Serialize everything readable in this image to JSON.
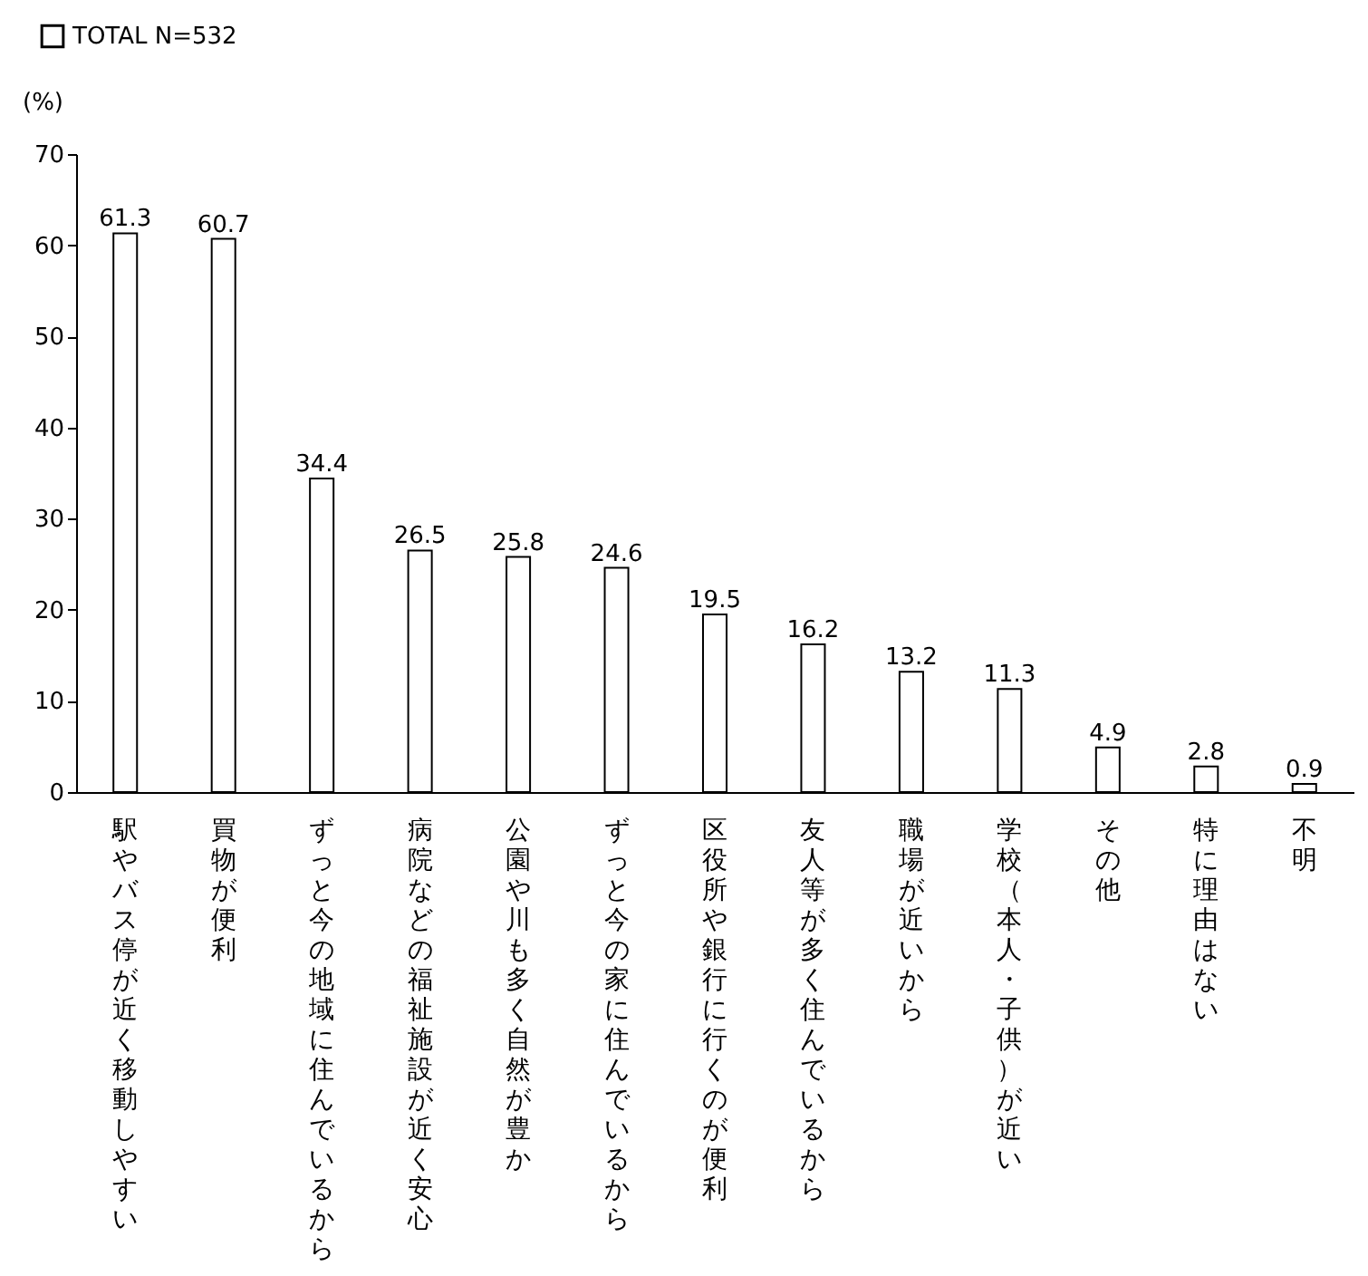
{
  "chart_data": {
    "type": "bar",
    "ylabel": "(%)",
    "categories": [
      "駅やバス停が近く移動しやすい",
      "買物が便利",
      "ずっと今の地域に住んでいるから",
      "病院などの福祉施設が近く安心",
      "公園や川も多く自然が豊か",
      "ずっと今の家に住んでいるから",
      "区役所や銀行に行くのが便利",
      "友人等が多く住んでいるから",
      "職場が近いから",
      "学校（本人・子供）が近い",
      "その他",
      "特に理由はない",
      "不明"
    ],
    "series": [
      {
        "name": "TOTAL N=532",
        "color": "#ffffff",
        "values": [
          61.3,
          60.7,
          34.4,
          26.5,
          25.8,
          24.6,
          19.5,
          16.2,
          13.2,
          11.3,
          4.9,
          2.8,
          0.9
        ]
      }
    ],
    "ylim": [
      0,
      70
    ],
    "yticks": [
      0,
      10,
      20,
      30,
      40,
      50,
      60,
      70
    ],
    "grid": false,
    "legend": "top left",
    "data_labels": true
  }
}
